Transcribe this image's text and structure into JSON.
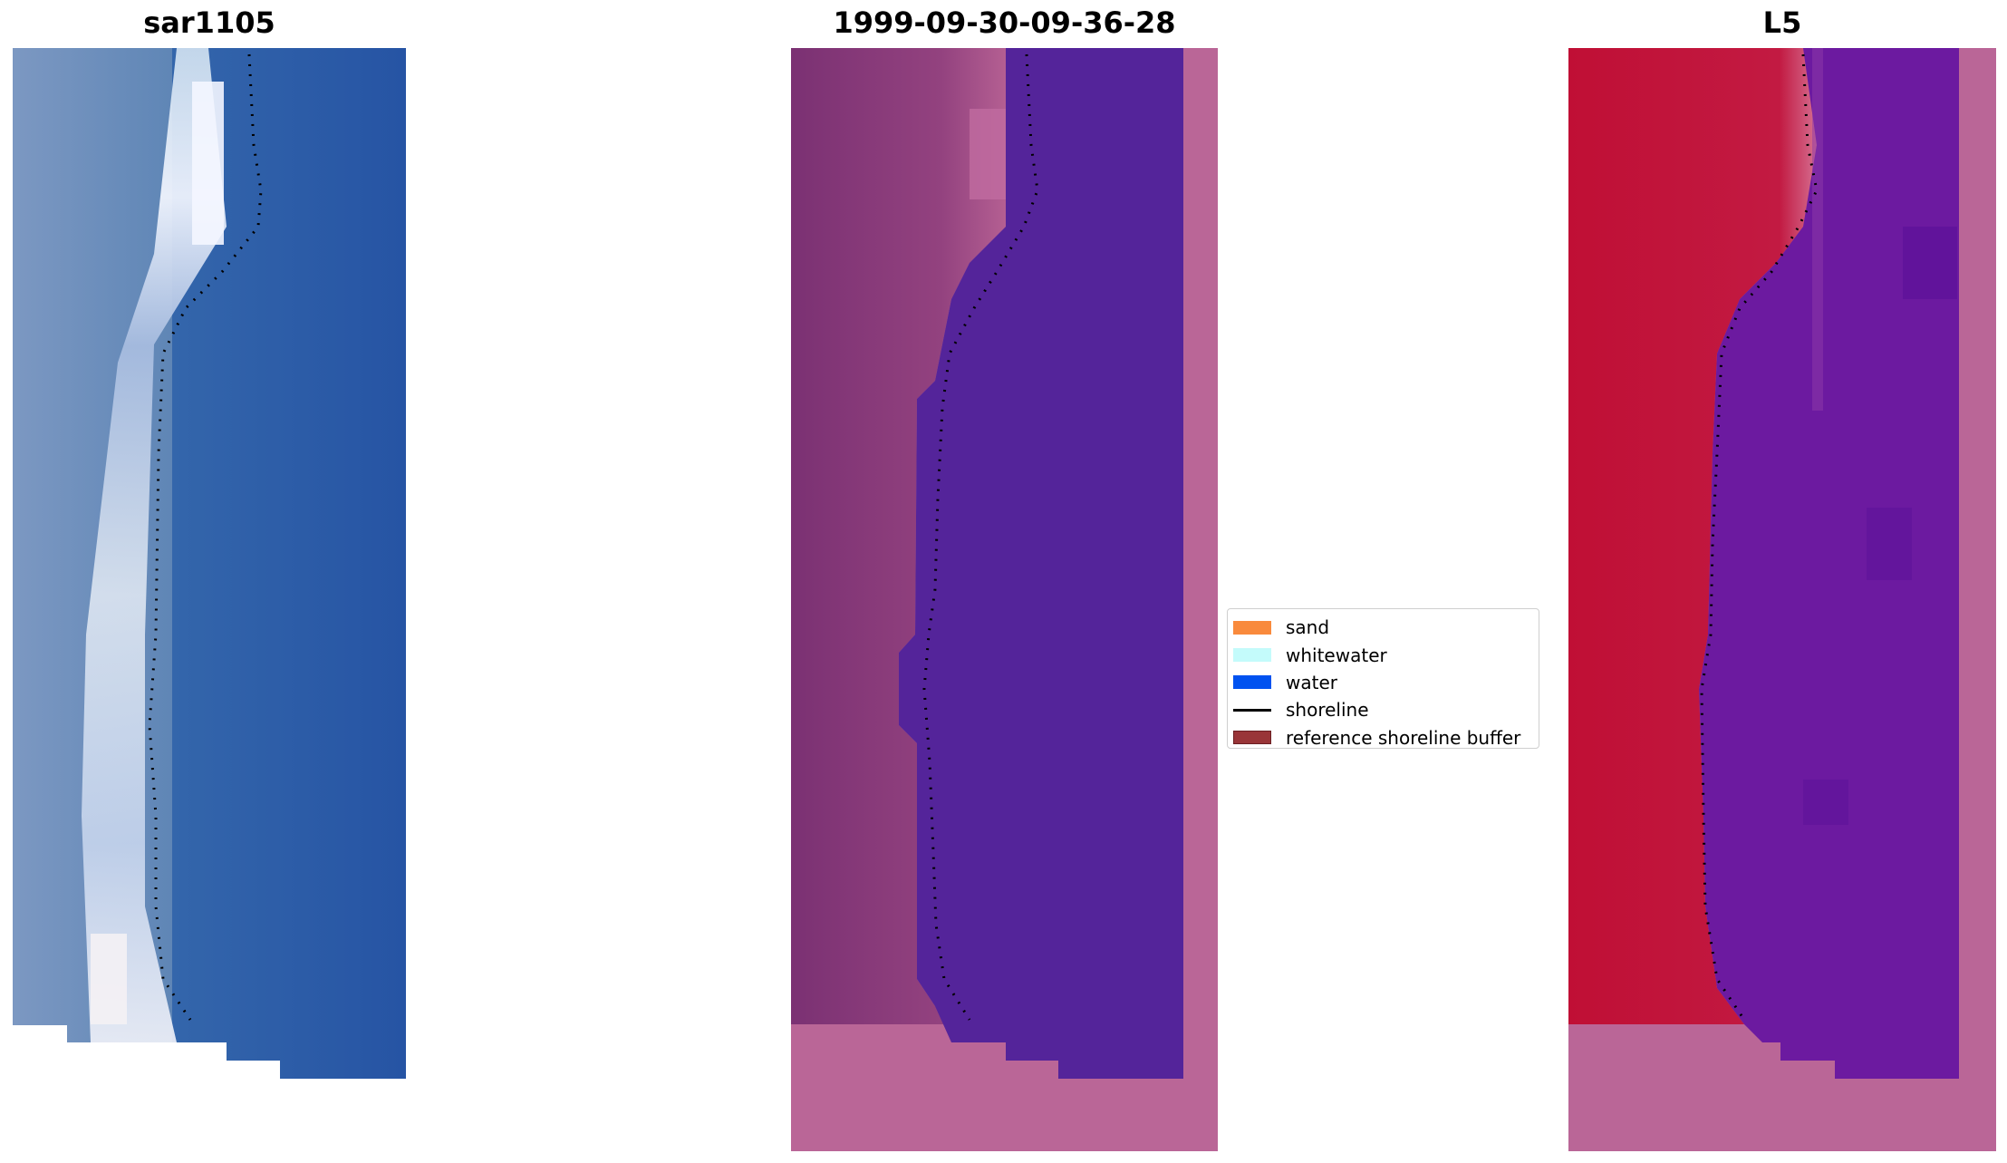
{
  "panels": [
    {
      "title": "sar1105",
      "image": "rgb-satellite-image"
    },
    {
      "title": "1999-09-30-09-36-28",
      "image": "classified-image"
    },
    {
      "title": "L5",
      "image": "mndwi-image"
    }
  ],
  "legend": {
    "items": [
      {
        "label": "sand",
        "color": "#f98a3c"
      },
      {
        "label": "whitewater",
        "color": "#c4fbfb"
      },
      {
        "label": "water",
        "color": "#0052f0"
      },
      {
        "label": "shoreline",
        "color": "#000000"
      },
      {
        "label": "reference shoreline buffer",
        "color": "#993538"
      }
    ]
  },
  "colors": {
    "sea_rgb": "#2a5aa8",
    "land_rgb": "#6e8fba",
    "beach_rgb": "#d8e0f2",
    "water_class": "#54249a",
    "land_class": "#7a3272",
    "buffer_pink": "#ba6697",
    "land_index": "#c01338",
    "water_index": "#6c1aa0"
  }
}
